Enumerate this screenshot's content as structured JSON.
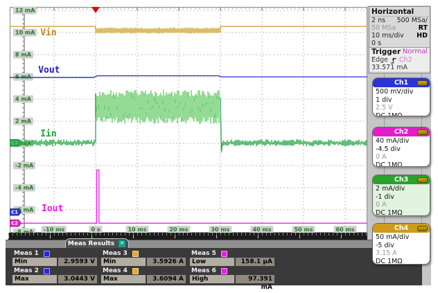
{
  "horizontal": {
    "title": "Horizontal",
    "resolution": "2 ns",
    "sample_rate": "500 MSa/",
    "adc_rate": "50 MSa",
    "realtime": "RT",
    "scale": "10 ms/div",
    "hd": "HD",
    "position": "0 s"
  },
  "trigger": {
    "title": "Trigger",
    "mode": "Normal",
    "type": "Edge",
    "source": "Ch2",
    "level": "33.571 mA"
  },
  "channels": [
    {
      "name": "Ch1",
      "color": "#2a35d4",
      "body_bg": "#ffffff",
      "rows": [
        {
          "text": "500 mV/div",
          "muted": false
        },
        {
          "text": "1 div",
          "muted": false
        },
        {
          "text": "2.5 V",
          "muted": true
        },
        {
          "text": "DC 1MΩ",
          "muted": false
        }
      ]
    },
    {
      "name": "Ch2",
      "color": "#e21ec8",
      "body_bg": "#ffffff",
      "rows": [
        {
          "text": "40 mA/div",
          "muted": false
        },
        {
          "text": "-4.5 div",
          "muted": false
        },
        {
          "text": "0 A",
          "muted": true
        },
        {
          "text": "DC 1MΩ",
          "muted": false
        }
      ]
    },
    {
      "name": "Ch3",
      "color": "#2ca02c",
      "body_bg": "#e2f3df",
      "rows": [
        {
          "text": "2 mA/div",
          "muted": false
        },
        {
          "text": "-1 div",
          "muted": false
        },
        {
          "text": "0 A",
          "muted": true
        },
        {
          "text": "DC 1MΩ",
          "muted": false
        }
      ]
    },
    {
      "name": "Ch4",
      "color": "#cf9b1d",
      "body_bg": "#ffffff",
      "rows": [
        {
          "text": "50 mA/div",
          "muted": false
        },
        {
          "text": "-5 div",
          "muted": false
        },
        {
          "text": "3.15 A",
          "muted": true
        },
        {
          "text": "DC 1MΩ",
          "muted": false
        }
      ]
    }
  ],
  "meas": {
    "tab_label": "Meas Results",
    "items": [
      {
        "name": "Meas 1",
        "color": "#2525ee",
        "stat": "Min",
        "value": "2.9593 V"
      },
      {
        "name": "Meas 2",
        "color": "#2525ee",
        "stat": "Max",
        "value": "3.0443 V"
      },
      {
        "name": "Meas 3",
        "color": "#f0a818",
        "stat": "Min",
        "value": "3.5926 A"
      },
      {
        "name": "Meas 4",
        "color": "#f0a818",
        "stat": "Max",
        "value": "3.6094 A"
      },
      {
        "name": "Meas 5",
        "color": "#f018f0",
        "stat": "Low",
        "value": "158.1 µA"
      },
      {
        "name": "Meas 6",
        "color": "#f018f0",
        "stat": "High",
        "value": "97.391 mA"
      }
    ]
  },
  "axes": {
    "ms_per_div": 10,
    "ma_per_div": 2,
    "y_ticks": [
      {
        "label": "12 mA",
        "v": 12
      },
      {
        "label": "10 mA",
        "v": 10
      },
      {
        "label": "8 mA",
        "v": 8
      },
      {
        "label": "6 mA",
        "v": 6
      },
      {
        "label": "4 mA",
        "v": 4
      },
      {
        "label": "2 mA",
        "v": 2
      },
      {
        "label": "0 mA",
        "v": 0
      },
      {
        "label": "-2 mA",
        "v": -2
      },
      {
        "label": "-4 mA",
        "v": -4
      },
      {
        "label": "-6 mA",
        "v": -6
      },
      {
        "label": "-8 mA",
        "v": -8
      }
    ],
    "x_ticks": [
      {
        "label": "-10 ms",
        "t": -10
      },
      {
        "label": "0 s",
        "t": 0
      },
      {
        "label": "10 ms",
        "t": 10
      },
      {
        "label": "20 ms",
        "t": 20
      },
      {
        "label": "30 ms",
        "t": 30
      },
      {
        "label": "40 ms",
        "t": 40
      },
      {
        "label": "50 ms",
        "t": 50
      },
      {
        "label": "60 ms",
        "t": 60
      }
    ]
  },
  "annotations": [
    {
      "text": "Vin",
      "color": "#c08a20",
      "t": -13.3,
      "v": 10.0
    },
    {
      "text": "Vout",
      "color": "#2020c8",
      "t": -13.8,
      "v": 6.6
    },
    {
      "text": "Iin",
      "color": "#18a838",
      "t": -13.3,
      "v": 0.9
    },
    {
      "text": "Iout",
      "color": "#e81ee8",
      "t": -13.0,
      "v": -5.9
    }
  ],
  "markers": [
    {
      "label": "C3",
      "color": "#28a845",
      "v": 0.05,
      "under": true
    },
    {
      "label": "C1",
      "color": "#2a35d4",
      "v": -6.2,
      "under": false
    },
    {
      "label": "C2",
      "color": "#e21ec8",
      "v": -7.2,
      "under": false
    }
  ],
  "trigger_marker": {
    "color": "#dd0b0b",
    "t": 0
  },
  "waveforms": {
    "vin": {
      "label": "Vin",
      "color": "#c9a43c",
      "fill": "#e8d294",
      "base_v": 10.55,
      "band_top_v": 10.45,
      "band_bot_v": 9.9,
      "t_on": 0,
      "t_off": 30
    },
    "vout": {
      "label": "Vout",
      "color": "#2a2ad0",
      "pre_v": 5.95,
      "on_v": 6.1,
      "post_v": 6.0
    },
    "iin": {
      "label": "Iin",
      "color": "#28a845",
      "fill": "#8fd98f",
      "base_v": 0.05,
      "noise_v": 0.25,
      "band_top_v": 4.85,
      "band_bot_v": 1.75,
      "t_on": 0,
      "t_off": 30,
      "undershoot_v": -0.8
    },
    "iout": {
      "label": "Iout",
      "color": "#e822e8",
      "base_v": -7.2,
      "spike_top_v": -2.4,
      "spike_t0": 0.25,
      "spike_t1": 0.8
    }
  }
}
